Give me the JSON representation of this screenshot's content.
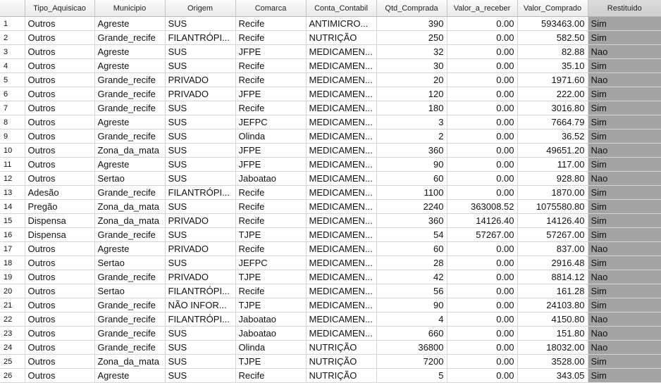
{
  "table": {
    "columns": [
      "",
      "Tipo_Aquisicao",
      "Municipio",
      "Origem",
      "Comarca",
      "Conta_Contabil",
      "Qtd_Comprada",
      "Valor_a_receber",
      "Valor_Comprado",
      "Restituido"
    ],
    "rows": [
      [
        "1",
        "Outros",
        "Agreste",
        "SUS",
        "Recife",
        "ANTIMICRO...",
        "390",
        "0.00",
        "593463.00",
        "Sim"
      ],
      [
        "2",
        "Outros",
        "Grande_recife",
        "FILANTRÓPI...",
        "Recife",
        "NUTRIÇÃO",
        "250",
        "0.00",
        "582.50",
        "Sim"
      ],
      [
        "3",
        "Outros",
        "Agreste",
        "SUS",
        "JFPE",
        "MEDICAMEN...",
        "32",
        "0.00",
        "82.88",
        "Nao"
      ],
      [
        "4",
        "Outros",
        "Agreste",
        "SUS",
        "Recife",
        "MEDICAMEN...",
        "30",
        "0.00",
        "35.10",
        "Sim"
      ],
      [
        "5",
        "Outros",
        "Grande_recife",
        "PRIVADO",
        "Recife",
        "MEDICAMEN...",
        "20",
        "0.00",
        "1971.60",
        "Nao"
      ],
      [
        "6",
        "Outros",
        "Grande_recife",
        "PRIVADO",
        "JFPE",
        "MEDICAMEN...",
        "120",
        "0.00",
        "222.00",
        "Sim"
      ],
      [
        "7",
        "Outros",
        "Grande_recife",
        "SUS",
        "Recife",
        "MEDICAMEN...",
        "180",
        "0.00",
        "3016.80",
        "Sim"
      ],
      [
        "8",
        "Outros",
        "Agreste",
        "SUS",
        "JEFPC",
        "MEDICAMEN...",
        "3",
        "0.00",
        "7664.79",
        "Sim"
      ],
      [
        "9",
        "Outros",
        "Grande_recife",
        "SUS",
        "Olinda",
        "MEDICAMEN...",
        "2",
        "0.00",
        "36.52",
        "Sim"
      ],
      [
        "10",
        "Outros",
        "Zona_da_mata",
        "SUS",
        "JFPE",
        "MEDICAMEN...",
        "360",
        "0.00",
        "49651.20",
        "Nao"
      ],
      [
        "11",
        "Outros",
        "Agreste",
        "SUS",
        "JFPE",
        "MEDICAMEN...",
        "90",
        "0.00",
        "117.00",
        "Sim"
      ],
      [
        "12",
        "Outros",
        "Sertao",
        "SUS",
        "Jaboatao",
        "MEDICAMEN...",
        "60",
        "0.00",
        "928.80",
        "Nao"
      ],
      [
        "13",
        "Adesão",
        "Grande_recife",
        "FILANTRÓPI...",
        "Recife",
        "MEDICAMEN...",
        "1100",
        "0.00",
        "1870.00",
        "Sim"
      ],
      [
        "14",
        "Pregão",
        "Zona_da_mata",
        "SUS",
        "Recife",
        "MEDICAMEN...",
        "2240",
        "363008.52",
        "1075580.80",
        "Sim"
      ],
      [
        "15",
        "Dispensa",
        "Zona_da_mata",
        "PRIVADO",
        "Recife",
        "MEDICAMEN...",
        "360",
        "14126.40",
        "14126.40",
        "Sim"
      ],
      [
        "16",
        "Dispensa",
        "Grande_recife",
        "SUS",
        "TJPE",
        "MEDICAMEN...",
        "54",
        "57267.00",
        "57267.00",
        "Sim"
      ],
      [
        "17",
        "Outros",
        "Agreste",
        "PRIVADO",
        "Recife",
        "MEDICAMEN...",
        "60",
        "0.00",
        "837.00",
        "Nao"
      ],
      [
        "18",
        "Outros",
        "Sertao",
        "SUS",
        "JEFPC",
        "MEDICAMEN...",
        "28",
        "0.00",
        "2916.48",
        "Sim"
      ],
      [
        "19",
        "Outros",
        "Grande_recife",
        "PRIVADO",
        "TJPE",
        "MEDICAMEN...",
        "42",
        "0.00",
        "8814.12",
        "Nao"
      ],
      [
        "20",
        "Outros",
        "Sertao",
        "FILANTRÓPI...",
        "Recife",
        "MEDICAMEN...",
        "56",
        "0.00",
        "161.28",
        "Sim"
      ],
      [
        "21",
        "Outros",
        "Grande_recife",
        "NÃO INFOR...",
        "TJPE",
        "MEDICAMEN...",
        "90",
        "0.00",
        "24103.80",
        "Sim"
      ],
      [
        "22",
        "Outros",
        "Grande_recife",
        "FILANTRÓPI...",
        "Jaboatao",
        "MEDICAMEN...",
        "4",
        "0.00",
        "4150.80",
        "Nao"
      ],
      [
        "23",
        "Outros",
        "Grande_recife",
        "SUS",
        "Jaboatao",
        "MEDICAMEN...",
        "660",
        "0.00",
        "151.80",
        "Nao"
      ],
      [
        "24",
        "Outros",
        "Grande_recife",
        "SUS",
        "Olinda",
        "NUTRIÇÃO",
        "36800",
        "0.00",
        "18032.00",
        "Nao"
      ],
      [
        "25",
        "Outros",
        "Zona_da_mata",
        "SUS",
        "TJPE",
        "NUTRIÇÃO",
        "7200",
        "0.00",
        "3528.00",
        "Sim"
      ],
      [
        "26",
        "Outros",
        "Agreste",
        "SUS",
        "Recife",
        "NUTRIÇÃO",
        "5",
        "0.00",
        "343.05",
        "Sim"
      ]
    ]
  }
}
